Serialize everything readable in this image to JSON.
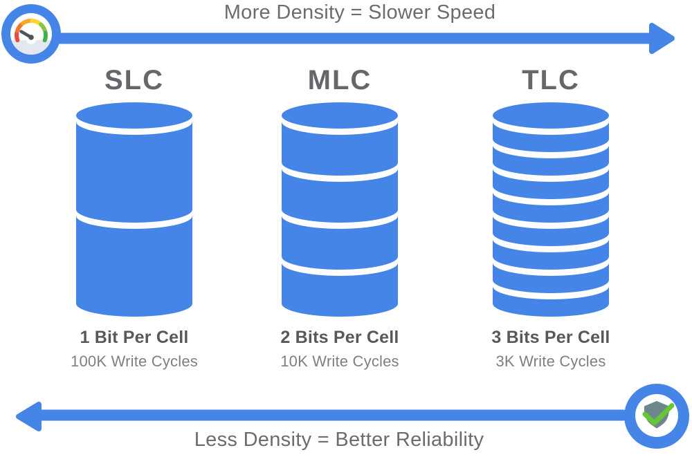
{
  "top_banner": {
    "label": "More Density = Slower Speed"
  },
  "bottom_banner": {
    "label": "Less Density = Better Reliability"
  },
  "columns": [
    {
      "name": "SLC",
      "segments": 2,
      "bits_label": "1 Bit Per Cell",
      "cycles_label": "100K Write Cycles"
    },
    {
      "name": "MLC",
      "segments": 4,
      "bits_label": "2 Bits Per Cell",
      "cycles_label": "10K Write Cycles"
    },
    {
      "name": "TLC",
      "segments": 8,
      "bits_label": "3 Bits Per Cell",
      "cycles_label": "3K Write Cycles"
    }
  ],
  "colors": {
    "blue": "#4585E8",
    "title_gray": "#6B6C6F",
    "header_gray": "#66676A",
    "dark_label": "#57585B",
    "light_label": "#7D7F82",
    "needle": "#4A555E",
    "gauge_face_shade": "#E3E8EE",
    "shield_gray": "#6E878C",
    "check_green": "#65C733"
  },
  "icons": {
    "gauge": {
      "name": "speedometer-icon",
      "segment_colors": [
        "#E84C3D",
        "#F3772B",
        "#F9A825",
        "#FDD531",
        "#8BC53F",
        "#3BB54A"
      ]
    },
    "shield": {
      "name": "shield-check-icon"
    }
  }
}
